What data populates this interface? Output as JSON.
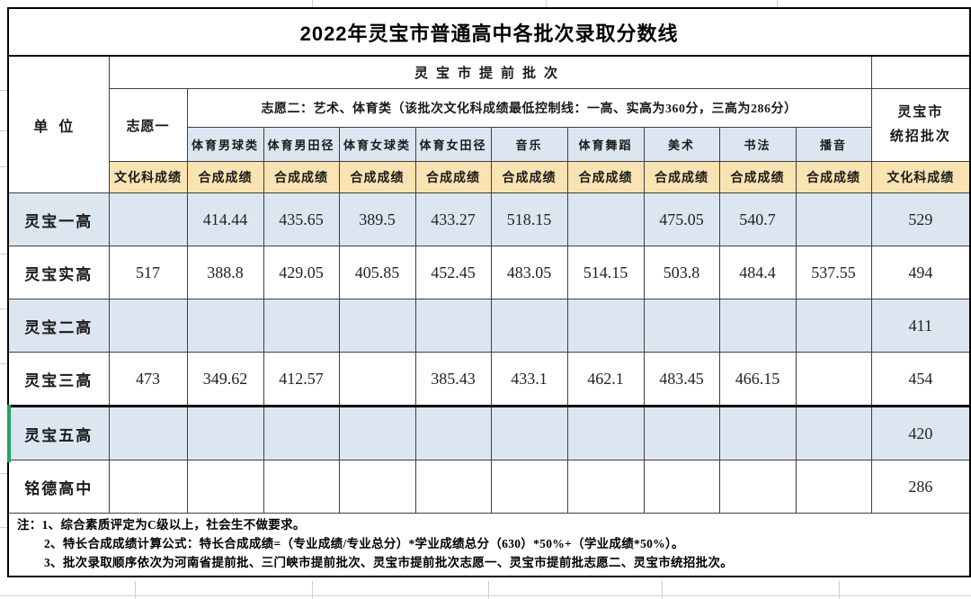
{
  "title": "2022年灵宝市普通高中各批次录取分数线",
  "colors": {
    "row_highlight_blue": "#dce6f1",
    "score_label_tan": "#fae3b2",
    "selection_green": "#21a366",
    "grid_border": "#3f3f3f"
  },
  "table": {
    "unit_header": "单位",
    "advance_batch_header": "灵宝市提前批次",
    "unified_batch_header": "灵宝市\n统招批次",
    "choice1_header": "志愿一",
    "choice2_header": "志愿二：艺术、体育类（该批次文化科成绩最低控制线：一高、实高为360分，三高为286分）",
    "categories": [
      "体育男球类",
      "体育男田径",
      "体育女球类",
      "体育女田径",
      "音乐",
      "体育舞蹈",
      "美术",
      "书法",
      "播音"
    ],
    "score_labels": {
      "culture": "文化科成绩",
      "composite": "合成成绩"
    },
    "rows": [
      {
        "name": "灵宝一高",
        "values": [
          "",
          "414.44",
          "435.65",
          "389.5",
          "433.27",
          "518.15",
          "",
          "475.05",
          "540.7",
          "",
          "529"
        ]
      },
      {
        "name": "灵宝实高",
        "values": [
          "517",
          "388.8",
          "429.05",
          "405.85",
          "452.45",
          "483.05",
          "514.15",
          "503.8",
          "484.4",
          "537.55",
          "494"
        ]
      },
      {
        "name": "灵宝二高",
        "values": [
          "",
          "",
          "",
          "",
          "",
          "",
          "",
          "",
          "",
          "",
          "411"
        ]
      },
      {
        "name": "灵宝三高",
        "values": [
          "473",
          "349.62",
          "412.57",
          "",
          "385.43",
          "433.1",
          "462.1",
          "483.45",
          "466.15",
          "",
          "454"
        ]
      },
      {
        "name": "灵宝五高",
        "values": [
          "",
          "",
          "",
          "",
          "",
          "",
          "",
          "",
          "",
          "",
          "420"
        ]
      },
      {
        "name": "铭德高中",
        "values": [
          "",
          "",
          "",
          "",
          "",
          "",
          "",
          "",
          "",
          "",
          "286"
        ]
      }
    ]
  },
  "notes": {
    "line1": "注：1、综合素质评定为C级以上，社会生不做要求。",
    "line2": "2、特长合成成绩计算公式：特长合成成绩=（专业成绩/专业总分）*学业成绩总分（630）*50%+（学业成绩*50%）。",
    "line3": "3、批次录取顺序依次为河南省提前批、三门峡市提前批次、灵宝市提前批次志愿一、灵宝市提前批志愿二、灵宝市统招批次。"
  }
}
